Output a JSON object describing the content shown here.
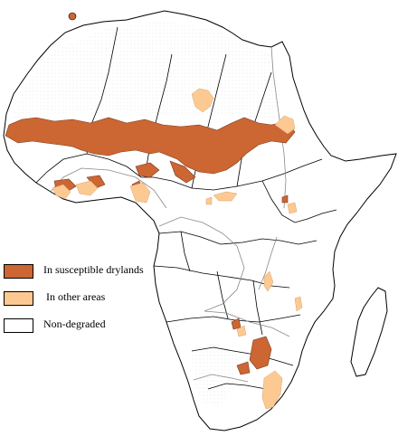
{
  "legend": {
    "items": [
      {
        "label": "In susceptible drylands",
        "color": "#cc6633"
      },
      {
        "label": " In other areas",
        "color": "#fdc993"
      },
      {
        "label": "Non-degraded",
        "color": "#ffffff"
      }
    ]
  },
  "colors": {
    "background": "#ffffff",
    "outline": "#000000",
    "rivers": "#888888",
    "drylands": "#cc6633",
    "other_areas": "#fdc993"
  }
}
